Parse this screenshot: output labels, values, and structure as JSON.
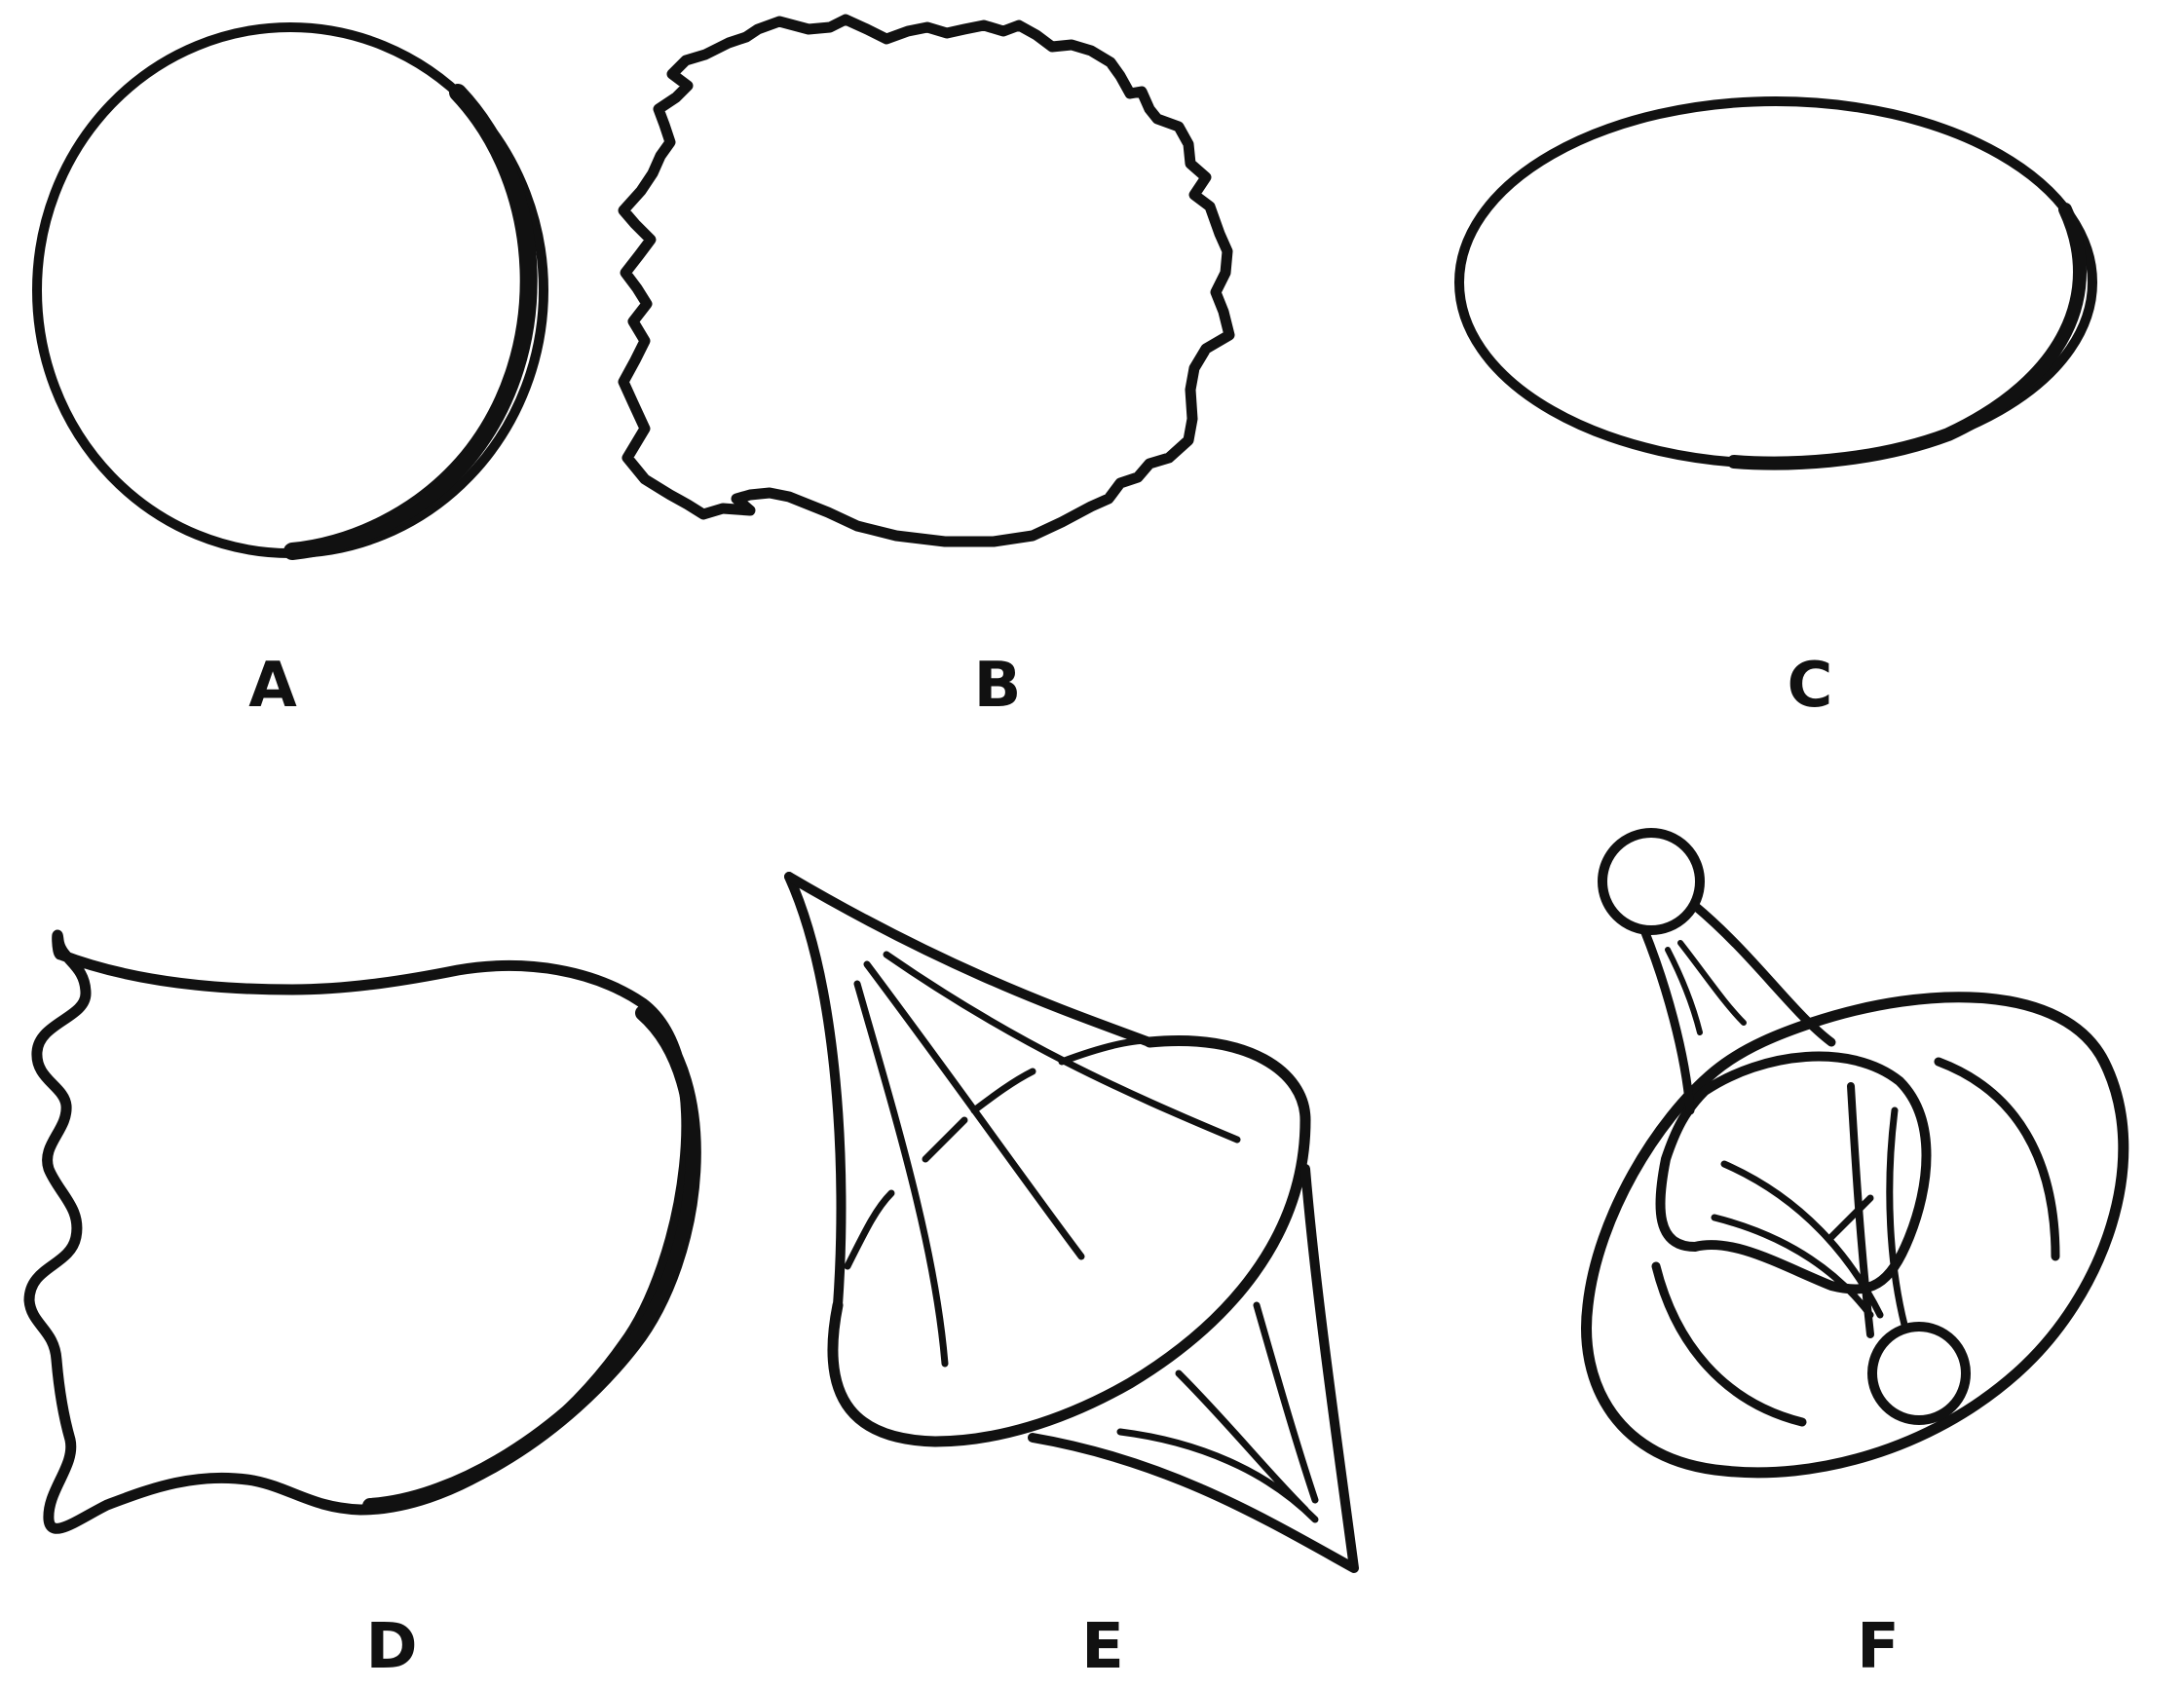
{
  "labels": {
    "a": "A",
    "b": "B",
    "c": "C",
    "d": "D",
    "e": "E",
    "f": "F"
  },
  "colors": {
    "ink": "#111111",
    "background": "#ffffff"
  }
}
